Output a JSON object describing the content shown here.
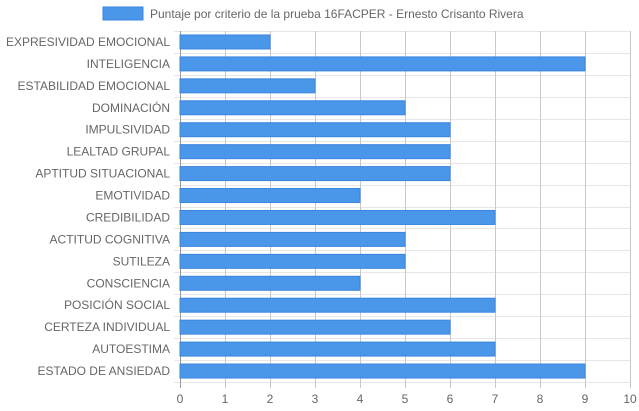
{
  "chart_data": {
    "type": "bar",
    "orientation": "horizontal",
    "categories": [
      "EXPRESIVIDAD EMOCIONAL",
      "INTELIGENCIA",
      "ESTABILIDAD EMOCIONAL",
      "DOMINACIÓN",
      "IMPULSIVIDAD",
      "LEALTAD GRUPAL",
      "APTITUD SITUACIONAL",
      "EMOTIVIDAD",
      "CREDIBILIDAD",
      "ACTITUD COGNITIVA",
      "SUTILEZA",
      "CONSCIENCIA",
      "POSICIÓN SOCIAL",
      "CERTEZA INDIVIDUAL",
      "AUTOESTIMA",
      "ESTADO DE ANSIEDAD"
    ],
    "series": [
      {
        "name": "Puntaje por criterio de la prueba 16FACPER - Ernesto Crisanto Rivera",
        "values": [
          2,
          9,
          3,
          5,
          6,
          6,
          6,
          4,
          7,
          5,
          5,
          4,
          7,
          6,
          7,
          9
        ],
        "color": "#4a96e8",
        "border_color": "#3a86e0"
      }
    ],
    "xlim": [
      0,
      10
    ],
    "x_ticks": [
      "0",
      "1",
      "2",
      "3",
      "4",
      "5",
      "6",
      "7",
      "8",
      "9",
      "10"
    ],
    "grid": true,
    "legend_position": "top"
  }
}
